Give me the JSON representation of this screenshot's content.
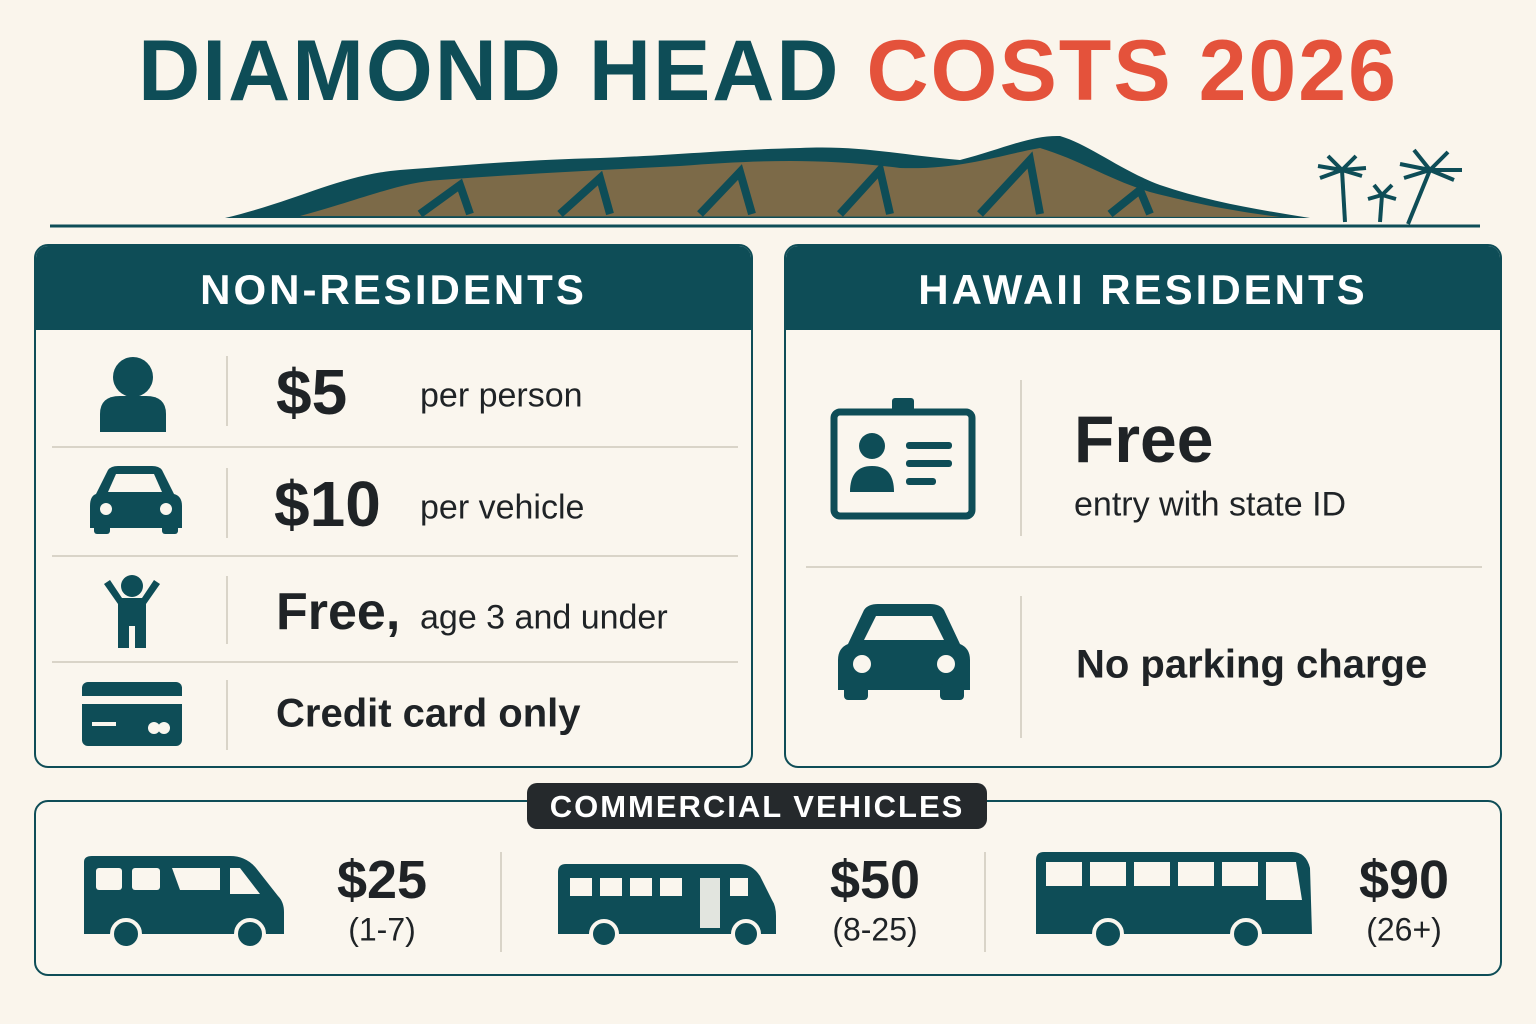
{
  "title": {
    "main": "DIAMOND HEAD",
    "accent": "COSTS 2026"
  },
  "non_residents": {
    "header": "NON-RESIDENTS",
    "rows": [
      {
        "price": "$5",
        "note": "per person"
      },
      {
        "price": "$10",
        "note": "per vehicle"
      },
      {
        "price": "Free,",
        "note": "age 3 and under"
      },
      {
        "price": "Credit card only"
      }
    ]
  },
  "residents": {
    "header": "HAWAII RESIDENTS",
    "rows": [
      {
        "price": "Free",
        "note": "entry with state ID"
      },
      {
        "note": "No parking charge"
      }
    ]
  },
  "commercial": {
    "header": "COMMERCIAL VEHICLES",
    "items": [
      {
        "price": "$25",
        "seats": "(1-7)"
      },
      {
        "price": "$50",
        "seats": "(8-25)"
      },
      {
        "price": "$90",
        "seats": "(26+)"
      }
    ]
  }
}
